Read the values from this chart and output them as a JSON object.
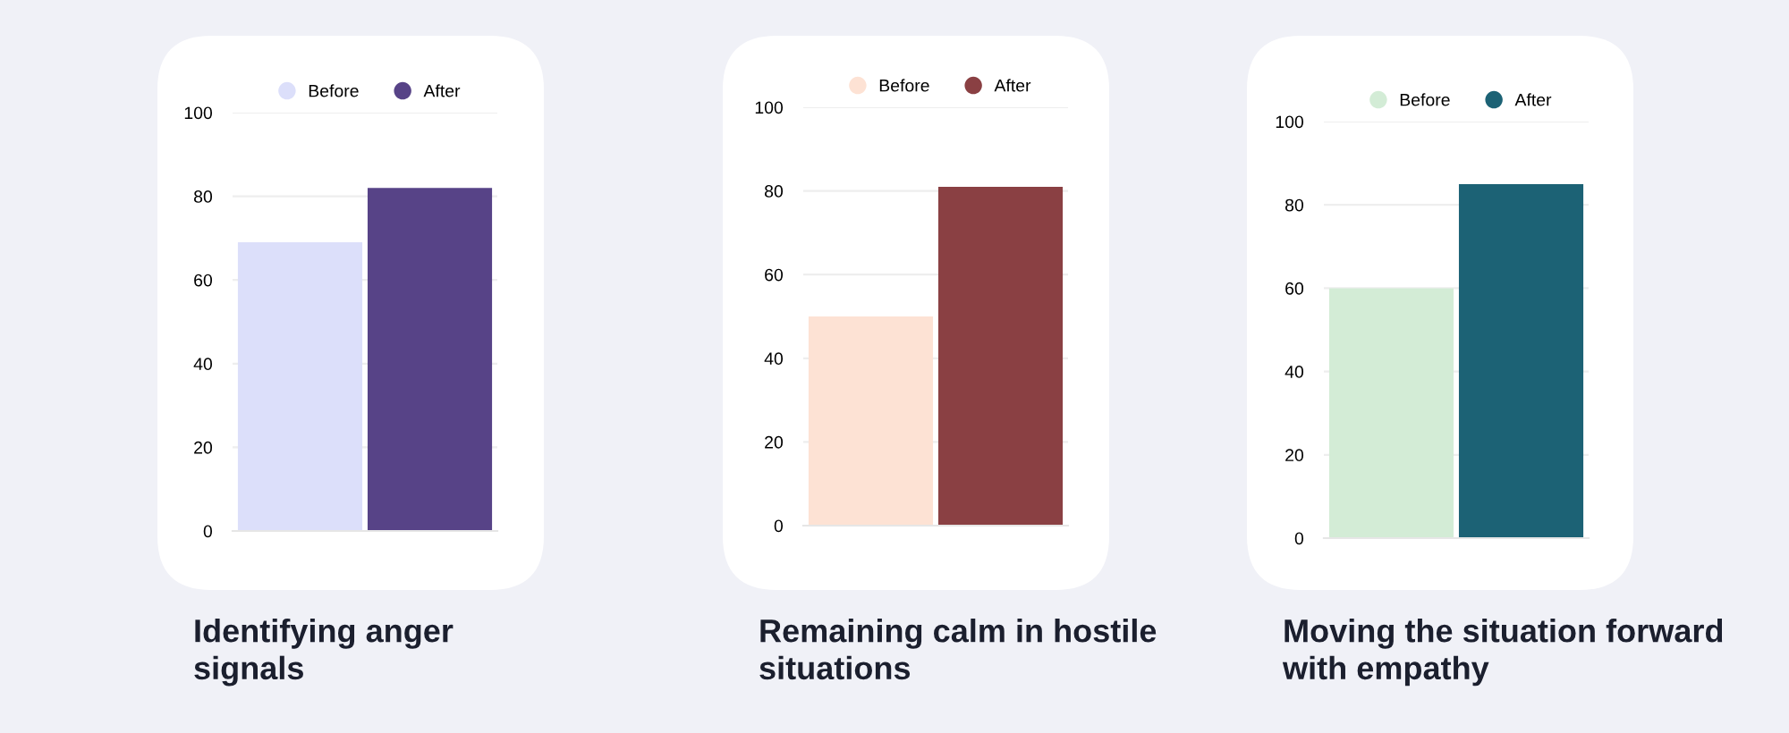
{
  "chart_data": [
    {
      "type": "bar",
      "title": "Identifying anger signals",
      "categories": [
        null
      ],
      "ylim": [
        0,
        100
      ],
      "yticks": [
        0,
        20,
        40,
        60,
        80,
        100
      ],
      "grid": "y",
      "legend": "top",
      "series": [
        {
          "name": "Before",
          "color": "#dcdffa",
          "values": [
            69
          ]
        },
        {
          "name": "After",
          "color": "#574387",
          "values": [
            82
          ]
        }
      ]
    },
    {
      "type": "bar",
      "title": "Remaining calm in hostile situations",
      "categories": [
        null
      ],
      "ylim": [
        0,
        100
      ],
      "yticks": [
        0,
        20,
        40,
        60,
        80,
        100
      ],
      "grid": "y",
      "legend": "top",
      "series": [
        {
          "name": "Before",
          "color": "#fde2d4",
          "values": [
            50
          ]
        },
        {
          "name": "After",
          "color": "#8a4043",
          "values": [
            81
          ]
        }
      ]
    },
    {
      "type": "bar",
      "title": "Moving the situation forward with empathy",
      "categories": [
        null
      ],
      "ylim": [
        0,
        100
      ],
      "yticks": [
        0,
        20,
        40,
        60,
        80,
        100
      ],
      "grid": "y",
      "legend": "top",
      "series": [
        {
          "name": "Before",
          "color": "#d3ecd6",
          "values": [
            60
          ]
        },
        {
          "name": "After",
          "color": "#1c6275",
          "values": [
            85
          ]
        }
      ]
    }
  ]
}
